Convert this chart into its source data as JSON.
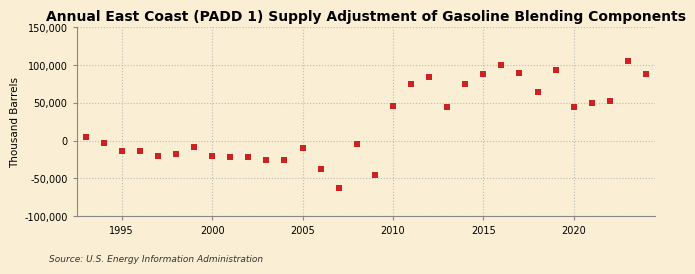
{
  "title": "Annual East Coast (PADD 1) Supply Adjustment of Gasoline Blending Components",
  "ylabel": "Thousand Barrels",
  "source": "Source: U.S. Energy Information Administration",
  "xlim": [
    1992.5,
    2024.5
  ],
  "ylim": [
    -100000,
    150000
  ],
  "yticks": [
    -100000,
    -50000,
    0,
    50000,
    100000,
    150000
  ],
  "xticks": [
    1995,
    2000,
    2005,
    2010,
    2015,
    2020
  ],
  "background_color": "#faefd4",
  "plot_background_color": "#faefd4",
  "marker_color": "#cc2222",
  "marker_size": 5,
  "marker_style": "s",
  "grid_color": "#bbbbbb",
  "title_fontsize": 10,
  "years": [
    1993,
    1994,
    1995,
    1996,
    1997,
    1998,
    1999,
    2000,
    2001,
    2002,
    2003,
    2004,
    2005,
    2006,
    2007,
    2008,
    2009,
    2010,
    2011,
    2012,
    2013,
    2014,
    2015,
    2016,
    2017,
    2018,
    2019,
    2020,
    2021,
    2022,
    2023,
    2024
  ],
  "values": [
    5000,
    -3000,
    -13000,
    -14000,
    -20000,
    -18000,
    -8000,
    -20000,
    -22000,
    -22000,
    -26000,
    -26000,
    -10000,
    -37000,
    -62000,
    -5000,
    -45000,
    46000,
    75000,
    85000,
    45000,
    75000,
    88000,
    100000,
    90000,
    65000,
    93000,
    44000,
    50000,
    52000,
    105000,
    88000
  ]
}
